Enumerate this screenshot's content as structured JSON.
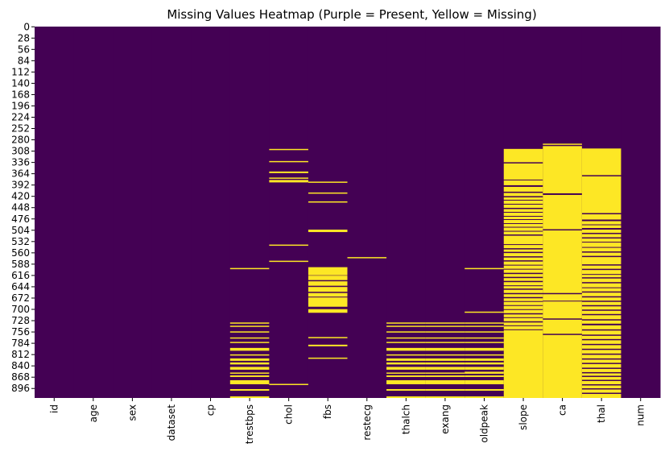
{
  "chart_data": {
    "type": "heatmap",
    "title": "Missing Values Heatmap (Purple = Present, Yellow = Missing)",
    "colors": {
      "present": "#440154",
      "missing": "#fde725"
    },
    "n_rows": 920,
    "columns": [
      "id",
      "age",
      "sex",
      "dataset",
      "cp",
      "trestbps",
      "chol",
      "fbs",
      "restecg",
      "thalch",
      "exang",
      "oldpeak",
      "slope",
      "ca",
      "thal",
      "num"
    ],
    "y_ticks": [
      0,
      28,
      56,
      84,
      112,
      140,
      168,
      196,
      224,
      252,
      280,
      308,
      336,
      364,
      392,
      420,
      448,
      476,
      504,
      532,
      560,
      588,
      616,
      644,
      672,
      700,
      728,
      756,
      784,
      812,
      840,
      868,
      896
    ],
    "missing_ranges": {
      "id": [],
      "age": [],
      "sex": [],
      "dataset": [],
      "cp": [],
      "trestbps": [
        [
          598,
          600
        ],
        [
          733,
          735
        ],
        [
          741,
          743
        ],
        [
          755,
          757
        ],
        [
          770,
          772
        ],
        [
          781,
          783
        ],
        [
          796,
          802
        ],
        [
          812,
          814
        ],
        [
          822,
          827
        ],
        [
          832,
          836
        ],
        [
          843,
          849
        ],
        [
          857,
          859
        ],
        [
          864,
          867
        ],
        [
          876,
          885
        ],
        [
          898,
          901
        ],
        [
          916,
          919
        ]
      ],
      "chol": [
        [
          303,
          305
        ],
        [
          333,
          335
        ],
        [
          359,
          362
        ],
        [
          374,
          376
        ],
        [
          380,
          385
        ],
        [
          540,
          542
        ],
        [
          580,
          582
        ],
        [
          885,
          887
        ]
      ],
      "fbs": [
        [
          384,
          386
        ],
        [
          411,
          413
        ],
        [
          433,
          435
        ],
        [
          503,
          508
        ],
        [
          596,
          615
        ],
        [
          617,
          627
        ],
        [
          631,
          641
        ],
        [
          645,
          656
        ],
        [
          660,
          668
        ],
        [
          671,
          693
        ],
        [
          700,
          708
        ],
        [
          769,
          771
        ],
        [
          788,
          791
        ],
        [
          820,
          822
        ]
      ],
      "restecg": [
        [
          571,
          573
        ]
      ],
      "thalch": [
        [
          733,
          735
        ],
        [
          741,
          743
        ],
        [
          755,
          757
        ],
        [
          770,
          772
        ],
        [
          781,
          783
        ],
        [
          796,
          802
        ],
        [
          812,
          814
        ],
        [
          822,
          827
        ],
        [
          832,
          836
        ],
        [
          843,
          849
        ],
        [
          857,
          859
        ],
        [
          864,
          867
        ],
        [
          876,
          885
        ],
        [
          898,
          901
        ],
        [
          916,
          919
        ]
      ],
      "exang": [
        [
          733,
          735
        ],
        [
          741,
          743
        ],
        [
          755,
          757
        ],
        [
          770,
          772
        ],
        [
          781,
          783
        ],
        [
          796,
          802
        ],
        [
          812,
          814
        ],
        [
          822,
          827
        ],
        [
          832,
          836
        ],
        [
          843,
          849
        ],
        [
          857,
          859
        ],
        [
          864,
          867
        ],
        [
          876,
          885
        ],
        [
          898,
          901
        ],
        [
          916,
          919
        ]
      ],
      "oldpeak": [
        [
          598,
          600
        ],
        [
          706,
          708
        ],
        [
          733,
          735
        ],
        [
          741,
          743
        ],
        [
          755,
          757
        ],
        [
          770,
          772
        ],
        [
          781,
          783
        ],
        [
          796,
          802
        ],
        [
          812,
          814
        ],
        [
          822,
          827
        ],
        [
          832,
          836
        ],
        [
          843,
          849
        ],
        [
          855,
          859
        ],
        [
          864,
          867
        ],
        [
          876,
          885
        ],
        [
          898,
          901
        ],
        [
          916,
          919
        ]
      ],
      "slope": [
        [
          303,
          335
        ],
        [
          339,
          378
        ],
        [
          381,
          392
        ],
        [
          397,
          408
        ],
        [
          412,
          419
        ],
        [
          423,
          428
        ],
        [
          431,
          438
        ],
        [
          441,
          448
        ],
        [
          452,
          458
        ],
        [
          461,
          468
        ],
        [
          471,
          476
        ],
        [
          479,
          486
        ],
        [
          489,
          495
        ],
        [
          498,
          505
        ],
        [
          508,
          514
        ],
        [
          518,
          538
        ],
        [
          541,
          548
        ],
        [
          552,
          557
        ],
        [
          561,
          568
        ],
        [
          572,
          578
        ],
        [
          582,
          589
        ],
        [
          592,
          599
        ],
        [
          602,
          609
        ],
        [
          613,
          619
        ],
        [
          623,
          629
        ],
        [
          633,
          640
        ],
        [
          643,
          648
        ],
        [
          652,
          659
        ],
        [
          663,
          669
        ],
        [
          673,
          679
        ],
        [
          682,
          689
        ],
        [
          692,
          699
        ],
        [
          702,
          709
        ],
        [
          713,
          719
        ],
        [
          722,
          729
        ],
        [
          733,
          739
        ],
        [
          742,
          749
        ],
        [
          752,
          919
        ]
      ],
      "ca": [
        [
          290,
          292
        ],
        [
          296,
          412
        ],
        [
          417,
          501
        ],
        [
          505,
          659
        ],
        [
          663,
          678
        ],
        [
          681,
          722
        ],
        [
          726,
          760
        ],
        [
          764,
          919
        ]
      ],
      "thal": [
        [
          302,
          367
        ],
        [
          371,
          461
        ],
        [
          465,
          477
        ],
        [
          482,
          489
        ],
        [
          492,
          498
        ],
        [
          503,
          510
        ],
        [
          514,
          521
        ],
        [
          525,
          532
        ],
        [
          535,
          545
        ],
        [
          548,
          556
        ],
        [
          560,
          567
        ],
        [
          571,
          588
        ],
        [
          592,
          599
        ],
        [
          603,
          612
        ],
        [
          615,
          620
        ],
        [
          624,
          632
        ],
        [
          636,
          645
        ],
        [
          648,
          655
        ],
        [
          659,
          667
        ],
        [
          671,
          678
        ],
        [
          682,
          689
        ],
        [
          693,
          700
        ],
        [
          704,
          711
        ],
        [
          715,
          724
        ],
        [
          728,
          735
        ],
        [
          740,
          749
        ],
        [
          753,
          762
        ],
        [
          766,
          773
        ],
        [
          777,
          785
        ],
        [
          789,
          797
        ],
        [
          801,
          809
        ],
        [
          813,
          821
        ],
        [
          825,
          832
        ],
        [
          836,
          844
        ],
        [
          848,
          855
        ],
        [
          859,
          864
        ],
        [
          868,
          874
        ],
        [
          878,
          885
        ],
        [
          889,
          895
        ],
        [
          899,
          906
        ],
        [
          910,
          919
        ]
      ],
      "num": []
    }
  }
}
